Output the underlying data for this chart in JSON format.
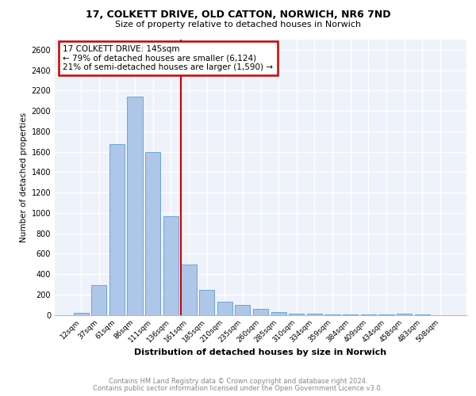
{
  "title1": "17, COLKETT DRIVE, OLD CATTON, NORWICH, NR6 7ND",
  "title2": "Size of property relative to detached houses in Norwich",
  "xlabel": "Distribution of detached houses by size in Norwich",
  "ylabel": "Number of detached properties",
  "categories": [
    "12sqm",
    "37sqm",
    "61sqm",
    "86sqm",
    "111sqm",
    "136sqm",
    "161sqm",
    "185sqm",
    "210sqm",
    "235sqm",
    "260sqm",
    "285sqm",
    "310sqm",
    "334sqm",
    "359sqm",
    "384sqm",
    "409sqm",
    "434sqm",
    "458sqm",
    "483sqm",
    "508sqm"
  ],
  "values": [
    20,
    295,
    1675,
    2140,
    1600,
    970,
    495,
    245,
    130,
    100,
    55,
    30,
    15,
    10,
    7,
    5,
    3,
    2,
    15,
    2,
    0
  ],
  "bar_color": "#aec6e8",
  "bar_edge_color": "#5a9fd4",
  "vline_x": 5.575,
  "vline_color": "#cc0000",
  "annotation_title": "17 COLKETT DRIVE: 145sqm",
  "annotation_line1": "← 79% of detached houses are smaller (6,124)",
  "annotation_line2": "21% of semi-detached houses are larger (1,590) →",
  "annotation_box_color": "#cc0000",
  "ylim": [
    0,
    2700
  ],
  "yticks": [
    0,
    200,
    400,
    600,
    800,
    1000,
    1200,
    1400,
    1600,
    1800,
    2000,
    2200,
    2400,
    2600
  ],
  "footer1": "Contains HM Land Registry data © Crown copyright and database right 2024.",
  "footer2": "Contains public sector information licensed under the Open Government Licence v3.0.",
  "bg_color": "#eef2fa",
  "grid_color": "#ffffff"
}
